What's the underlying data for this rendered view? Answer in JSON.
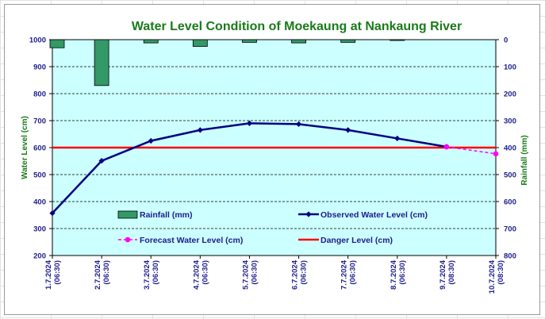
{
  "chart_data": {
    "type": "line",
    "title": "Water Level Condition of Moekaung at Nankaung River",
    "ylabel": "Water Level (cm)",
    "y2label": "Rainfall (mm)",
    "ylim": [
      200,
      1000
    ],
    "y2lim": [
      0,
      800
    ],
    "y2_inverted": true,
    "yticks": [
      "200",
      "300",
      "400",
      "500",
      "600",
      "700",
      "800",
      "900",
      "1000"
    ],
    "y2ticks": [
      "0",
      "100",
      "200",
      "300",
      "400",
      "500",
      "600",
      "700",
      "800"
    ],
    "categories": [
      [
        "1.7.2024",
        "(06:30)"
      ],
      [
        "2.7.2024",
        "(06:30)"
      ],
      [
        "3.7.2024",
        "(06:30)"
      ],
      [
        "4.7.2024",
        "(06:30)"
      ],
      [
        "5.7.2024",
        "(06:30)"
      ],
      [
        "6.7.2024",
        "(06:30)"
      ],
      [
        "7.7.2024",
        "(06:30)"
      ],
      [
        "8.7.2024",
        "(06:30)"
      ],
      [
        "9.7.2024",
        "(08:30)"
      ],
      [
        "10.7.2024",
        "(08:30)"
      ]
    ],
    "grid": true,
    "background": "#ccffff",
    "series": [
      {
        "name": "Rainfall (mm)",
        "kind": "bar",
        "axis": "right",
        "color": "#339966",
        "values": [
          30,
          170,
          12,
          25,
          10,
          12,
          10,
          3,
          null,
          null
        ]
      },
      {
        "name": "Observed Water Level (cm)",
        "kind": "line",
        "axis": "left",
        "color": "#000080",
        "marker": "diamond",
        "values": [
          357,
          551,
          625,
          665,
          690,
          687,
          665,
          634,
          603,
          null
        ]
      },
      {
        "name": "Forecast Water Level (cm)",
        "kind": "line",
        "axis": "left",
        "color": "#ff00ff",
        "style": "dashed",
        "marker": "circle",
        "values": [
          null,
          null,
          null,
          null,
          null,
          null,
          null,
          null,
          603,
          577
        ]
      },
      {
        "name": "Danger Level (cm)",
        "kind": "line",
        "axis": "left",
        "color": "#ff0000",
        "constant": 600
      }
    ],
    "legend": [
      {
        "label": "Rainfall (mm)",
        "series": 0
      },
      {
        "label": "Observed Water Level (cm)",
        "series": 1
      },
      {
        "label": "Forecast Water Level (cm)",
        "series": 2
      },
      {
        "label": "Danger Level (cm)",
        "series": 3
      }
    ]
  }
}
